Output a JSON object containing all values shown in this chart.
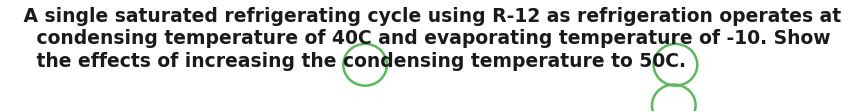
{
  "bullet": "•",
  "line1": " A single saturated refrigerating cycle using R-12 as refrigeration operates at",
  "line2": "   condensing temperature of 40C and evaporating temperature of -10. Show",
  "line3": "   the effects of increasing the condensing temperature to 50C.",
  "background_color": "#ffffff",
  "text_color": "#1a1a1a",
  "font_size": 13.5,
  "font_weight": "bold",
  "circle_color": "#5cb85c",
  "circle_linewidth": 1.8,
  "arrow_color": "#00aacc"
}
